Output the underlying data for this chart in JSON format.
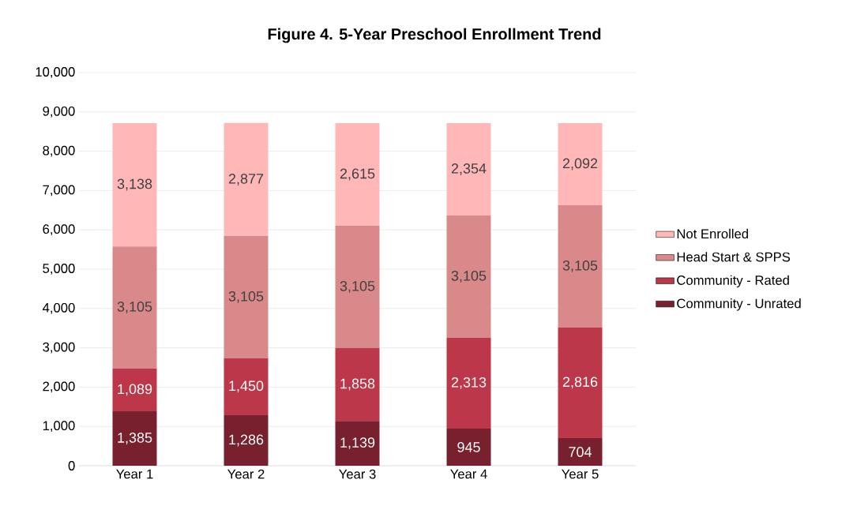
{
  "chart_data": {
    "type": "bar",
    "title": "Figure 4. 5-Year Preschool Enrollment Trend",
    "stacked": true,
    "categories": [
      "Year 1",
      "Year 2",
      "Year 3",
      "Year 4",
      "Year 5"
    ],
    "series": [
      {
        "name": "Community - Unrated",
        "color": "#78202e",
        "values": [
          1385,
          1286,
          1139,
          945,
          704
        ],
        "value_labels": [
          "1,385",
          "1,286",
          "1,139",
          "945",
          "704"
        ]
      },
      {
        "name": "Community - Rated",
        "color": "#bb3749",
        "values": [
          1089,
          1450,
          1858,
          2313,
          2816
        ],
        "value_labels": [
          "1,089",
          "1,450",
          "1,858",
          "2,313",
          "2,816"
        ]
      },
      {
        "name": "Head Start & SPPS",
        "color": "#d98989",
        "values": [
          3105,
          3105,
          3105,
          3105,
          3105
        ],
        "value_labels": [
          "3,105",
          "3,105",
          "3,105",
          "3,105",
          "3,105"
        ]
      },
      {
        "name": "Not Enrolled",
        "color": "#ffb7b8",
        "values": [
          3138,
          2877,
          2615,
          2354,
          2092
        ],
        "value_labels": [
          "3,138",
          "2,877",
          "2,615",
          "2,354",
          "2,092"
        ]
      }
    ],
    "ylim": [
      0,
      10000
    ],
    "yticks": [
      0,
      {
        "value": 1000,
        "label": "1,000"
      },
      {
        "value": 2000,
        "label": "2,000"
      },
      {
        "value": 3000,
        "label": "3,000"
      },
      {
        "value": 4000,
        "label": "4,000"
      },
      {
        "value": 5000,
        "label": "5,000"
      },
      {
        "value": 6000,
        "label": "6,000"
      },
      {
        "value": 7000,
        "label": "7,000"
      },
      {
        "value": 8000,
        "label": "8,000"
      },
      {
        "value": 9000,
        "label": "9,000"
      },
      {
        "value": 10000,
        "label": "10,000"
      }
    ],
    "grid": "y",
    "legend": "right"
  }
}
